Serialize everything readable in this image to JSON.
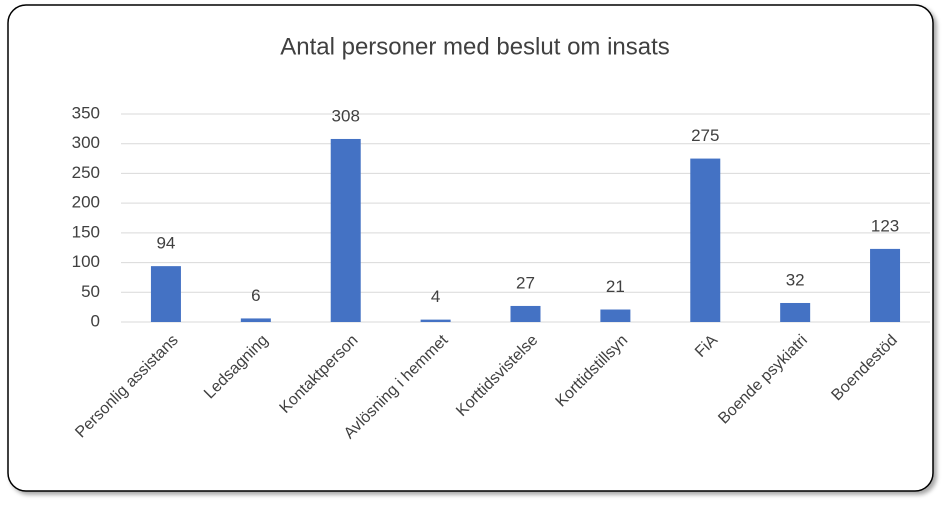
{
  "chart_data": {
    "type": "bar",
    "title": "Antal personer med beslut om insats",
    "categories": [
      "Personlig assistans",
      "Ledsagning",
      "Kontaktperson",
      "Avlösning i hemmet",
      "Korttidsvistelse",
      "Korttidstillsyn",
      "FiA",
      "Boende psykiatri",
      "Boendestöd"
    ],
    "values": [
      94,
      6,
      308,
      4,
      27,
      21,
      275,
      32,
      123
    ],
    "color": "#4472c4",
    "ylim": [
      0,
      350
    ],
    "yticks": [
      0,
      50,
      100,
      150,
      200,
      250,
      300,
      350
    ],
    "grid": true
  }
}
